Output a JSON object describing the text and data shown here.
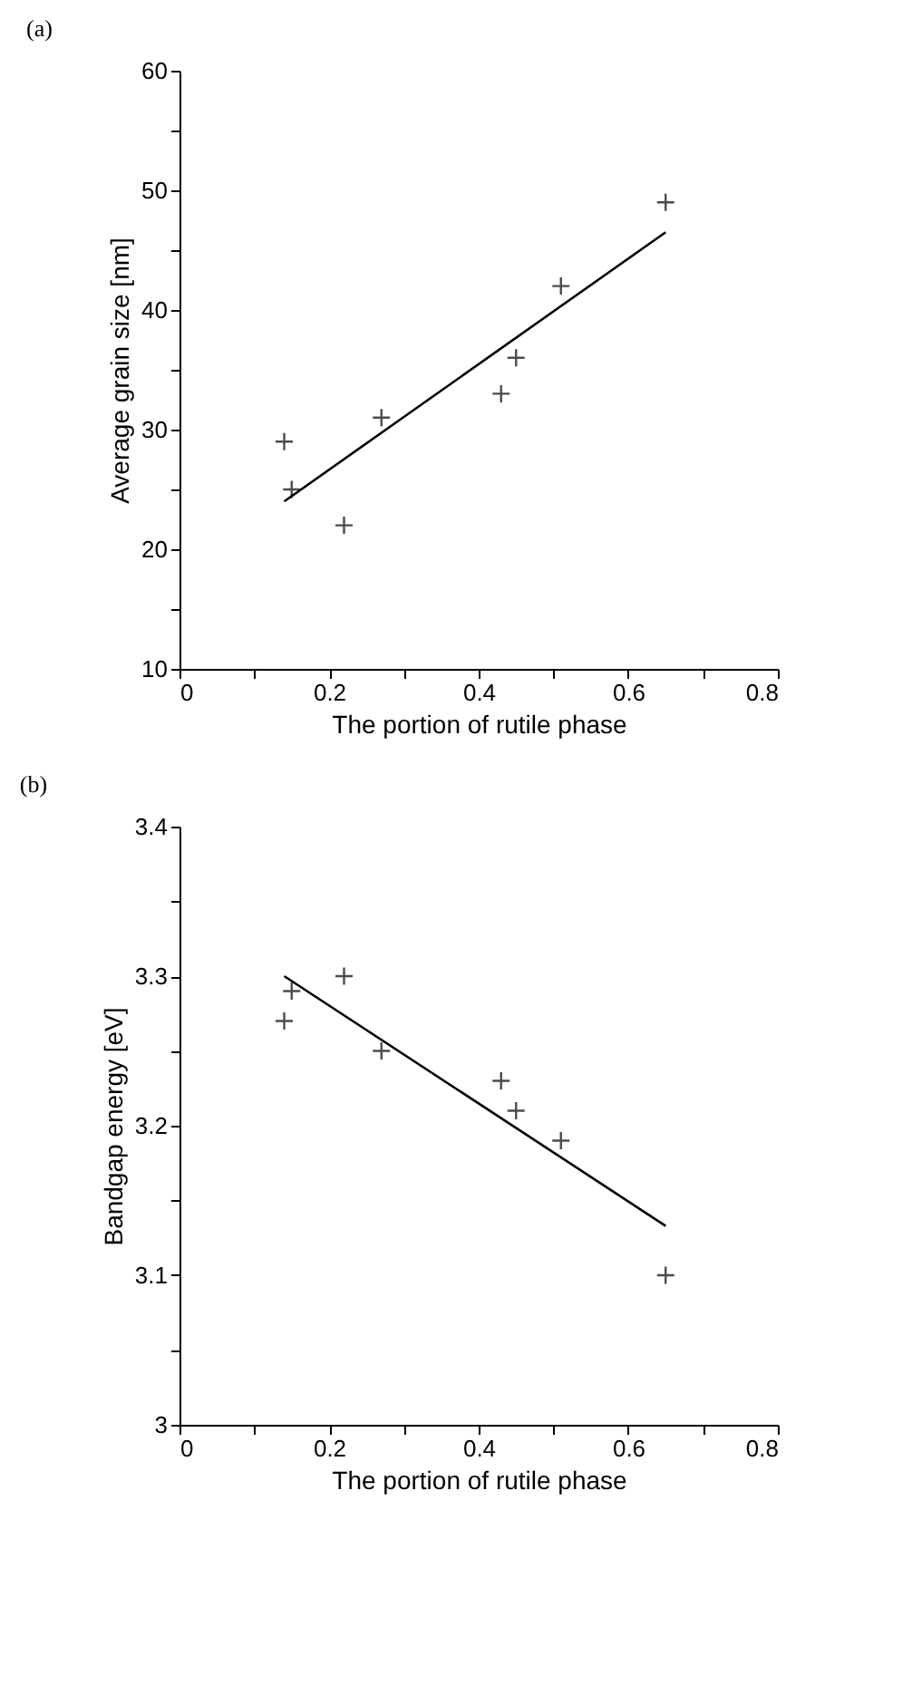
{
  "chart_data": [
    {
      "type": "scatter",
      "title": "(a)",
      "xlabel": "The portion of rutile phase",
      "ylabel": "Average grain size [nm]",
      "xlim": [
        0,
        0.8
      ],
      "xticks": [
        0,
        {
          "value": 0.1,
          "label": null
        },
        0.2,
        {
          "value": 0.3,
          "label": null
        },
        0.4,
        {
          "value": 0.5,
          "label": null
        },
        0.6,
        {
          "value": 0.7,
          "label": null
        },
        0.8
      ],
      "ylim": [
        10,
        60
      ],
      "yticks": [
        10,
        {
          "value": 15,
          "label": null
        },
        20,
        {
          "value": 25,
          "label": null
        },
        30,
        {
          "value": 35,
          "label": null
        },
        40,
        {
          "value": 45,
          "label": null
        },
        50,
        {
          "value": 55,
          "label": null
        },
        60
      ],
      "grid": false,
      "series": [
        {
          "type": "scatter",
          "color": "#000000",
          "marker": "cross",
          "x": [
            0.14,
            0.15,
            0.22,
            0.27,
            0.43,
            0.45,
            0.51,
            0.65
          ],
          "values": [
            29,
            25,
            22,
            31,
            33,
            36,
            42,
            49
          ]
        },
        {
          "type": "line",
          "color": "#000000",
          "line_style": "solid",
          "x": [
            0.14,
            0.65
          ],
          "values": [
            24,
            46.5
          ]
        }
      ]
    },
    {
      "type": "scatter",
      "title": "(b)",
      "xlabel": "The portion of rutile phase",
      "ylabel": "Bandgap energy [eV]",
      "xlim": [
        0,
        0.8
      ],
      "xticks": [
        0,
        {
          "value": 0.1,
          "label": null
        },
        0.2,
        {
          "value": 0.3,
          "label": null
        },
        0.4,
        {
          "value": 0.5,
          "label": null
        },
        0.6,
        {
          "value": 0.7,
          "label": null
        },
        0.8
      ],
      "ylim": [
        3,
        3.4
      ],
      "yticks": [
        3,
        {
          "value": 3.05,
          "label": null
        },
        3.1,
        {
          "value": 3.15,
          "label": null
        },
        3.2,
        {
          "value": 3.25,
          "label": null
        },
        3.3,
        {
          "value": 3.35,
          "label": null
        },
        3.4
      ],
      "grid": false,
      "series": [
        {
          "type": "scatter",
          "color": "#000000",
          "marker": "cross",
          "x": [
            0.14,
            0.15,
            0.22,
            0.27,
            0.43,
            0.45,
            0.51,
            0.65
          ],
          "values": [
            3.27,
            3.29,
            3.3,
            3.25,
            3.23,
            3.21,
            3.19,
            3.1
          ]
        },
        {
          "type": "line",
          "color": "#000000",
          "line_style": "solid",
          "x": [
            0.14,
            0.65
          ],
          "values": [
            3.3,
            3.133
          ]
        }
      ]
    }
  ]
}
